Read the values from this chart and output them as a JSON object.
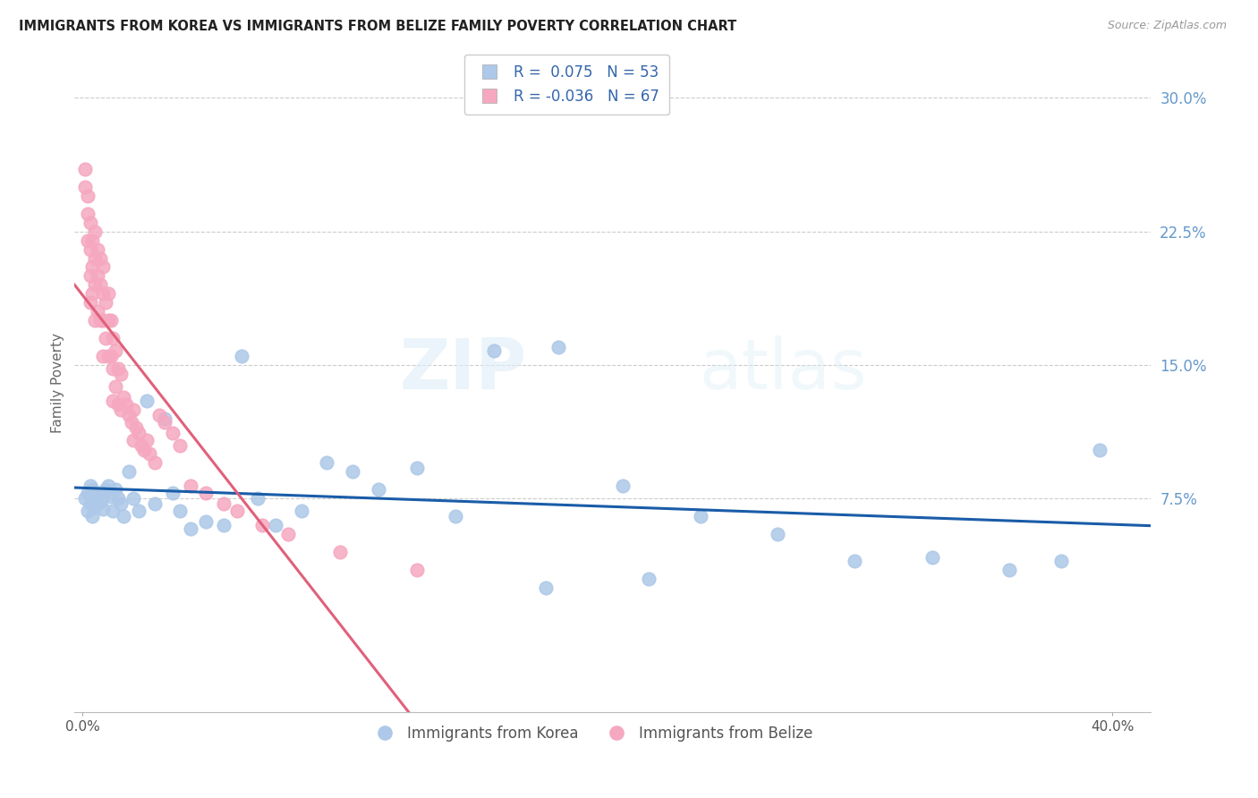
{
  "title": "IMMIGRANTS FROM KOREA VS IMMIGRANTS FROM BELIZE FAMILY POVERTY CORRELATION CHART",
  "source": "Source: ZipAtlas.com",
  "ylabel": "Family Poverty",
  "yticks": [
    0.075,
    0.15,
    0.225,
    0.3
  ],
  "ytick_labels": [
    "7.5%",
    "15.0%",
    "22.5%",
    "30.0%"
  ],
  "xlim": [
    -0.003,
    0.415
  ],
  "ylim": [
    -0.045,
    0.325
  ],
  "korea_R": 0.075,
  "korea_N": 53,
  "belize_R": -0.036,
  "belize_N": 67,
  "korea_color": "#adc8e8",
  "belize_color": "#f5a8c0",
  "korea_line_color": "#1a5ca8",
  "belize_line_color": "#e0607a",
  "watermark_zip": "ZIP",
  "watermark_atlas": "atlas",
  "korea_x": [
    0.001,
    0.002,
    0.002,
    0.003,
    0.003,
    0.004,
    0.004,
    0.005,
    0.005,
    0.006,
    0.007,
    0.008,
    0.008,
    0.009,
    0.01,
    0.011,
    0.012,
    0.013,
    0.014,
    0.015,
    0.016,
    0.018,
    0.02,
    0.022,
    0.025,
    0.028,
    0.032,
    0.035,
    0.038,
    0.042,
    0.048,
    0.055,
    0.062,
    0.068,
    0.075,
    0.085,
    0.095,
    0.105,
    0.115,
    0.13,
    0.145,
    0.16,
    0.185,
    0.21,
    0.24,
    0.27,
    0.3,
    0.33,
    0.36,
    0.38,
    0.395,
    0.18,
    0.22
  ],
  "korea_y": [
    0.075,
    0.078,
    0.068,
    0.082,
    0.072,
    0.08,
    0.065,
    0.07,
    0.078,
    0.075,
    0.073,
    0.076,
    0.069,
    0.08,
    0.082,
    0.076,
    0.068,
    0.08,
    0.075,
    0.072,
    0.065,
    0.09,
    0.075,
    0.068,
    0.13,
    0.072,
    0.12,
    0.078,
    0.068,
    0.058,
    0.062,
    0.06,
    0.155,
    0.075,
    0.06,
    0.068,
    0.095,
    0.09,
    0.08,
    0.092,
    0.065,
    0.158,
    0.16,
    0.082,
    0.065,
    0.055,
    0.04,
    0.042,
    0.035,
    0.04,
    0.102,
    0.025,
    0.03
  ],
  "belize_x": [
    0.001,
    0.001,
    0.002,
    0.002,
    0.002,
    0.003,
    0.003,
    0.003,
    0.003,
    0.004,
    0.004,
    0.004,
    0.005,
    0.005,
    0.005,
    0.005,
    0.006,
    0.006,
    0.006,
    0.007,
    0.007,
    0.007,
    0.008,
    0.008,
    0.008,
    0.008,
    0.009,
    0.009,
    0.01,
    0.01,
    0.01,
    0.011,
    0.011,
    0.012,
    0.012,
    0.012,
    0.013,
    0.013,
    0.014,
    0.014,
    0.015,
    0.015,
    0.016,
    0.017,
    0.018,
    0.019,
    0.02,
    0.02,
    0.021,
    0.022,
    0.023,
    0.024,
    0.025,
    0.026,
    0.028,
    0.03,
    0.032,
    0.035,
    0.038,
    0.042,
    0.048,
    0.055,
    0.06,
    0.07,
    0.08,
    0.1,
    0.13
  ],
  "belize_y": [
    0.26,
    0.25,
    0.245,
    0.235,
    0.22,
    0.23,
    0.215,
    0.2,
    0.185,
    0.22,
    0.205,
    0.19,
    0.225,
    0.21,
    0.195,
    0.175,
    0.215,
    0.2,
    0.18,
    0.21,
    0.195,
    0.175,
    0.205,
    0.19,
    0.175,
    0.155,
    0.185,
    0.165,
    0.19,
    0.175,
    0.155,
    0.175,
    0.155,
    0.165,
    0.148,
    0.13,
    0.158,
    0.138,
    0.148,
    0.128,
    0.145,
    0.125,
    0.132,
    0.128,
    0.122,
    0.118,
    0.125,
    0.108,
    0.115,
    0.112,
    0.105,
    0.102,
    0.108,
    0.1,
    0.095,
    0.122,
    0.118,
    0.112,
    0.105,
    0.082,
    0.078,
    0.072,
    0.068,
    0.06,
    0.055,
    0.045,
    0.035
  ]
}
